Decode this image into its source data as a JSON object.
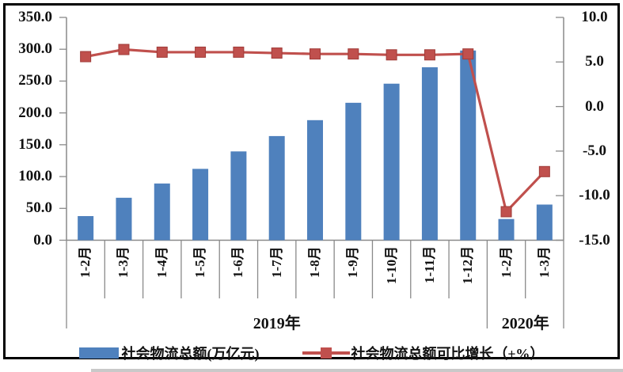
{
  "chart_data": {
    "type": "bar+line combo",
    "categories": [
      "1-2月",
      "1-3月",
      "1-4月",
      "1-5月",
      "1-6月",
      "1-7月",
      "1-8月",
      "1-9月",
      "1-10月",
      "1-11月",
      "1-12月",
      "1-2月",
      "1-3月"
    ],
    "group_labels": [
      {
        "label": "2019年",
        "span": [
          0,
          10
        ]
      },
      {
        "label": "2020年",
        "span": [
          11,
          12
        ]
      }
    ],
    "series": [
      {
        "name": "社会物流总额(万亿元)",
        "type": "bar",
        "axis": "left",
        "color": "#4f81bd",
        "values": [
          37.9,
          66.7,
          89.1,
          112.1,
          139.5,
          163.6,
          188.6,
          215.9,
          245.9,
          271.7,
          298.0,
          33.3,
          56.0
        ]
      },
      {
        "name": "社会物流总额可比增长（±%）",
        "type": "line",
        "axis": "right",
        "color": "#c0504d",
        "marker": "square",
        "values": [
          5.6,
          6.4,
          6.1,
          6.1,
          6.1,
          6.0,
          5.9,
          5.9,
          5.8,
          5.8,
          5.9,
          -11.8,
          -7.3
        ]
      }
    ],
    "left_axis": {
      "ticks": [
        "350.0",
        "300.0",
        "250.0",
        "200.0",
        "150.0",
        "100.0",
        "50.0",
        "0.0"
      ],
      "min": 0,
      "max": 350
    },
    "right_axis": {
      "ticks": [
        "10.0",
        "5.0",
        "0.0",
        "-5.0",
        "-10.0",
        "-15.0"
      ],
      "min": -15,
      "max": 10
    },
    "legend_position": "bottom",
    "grid": false,
    "axis_color": "#8a8a8a"
  }
}
